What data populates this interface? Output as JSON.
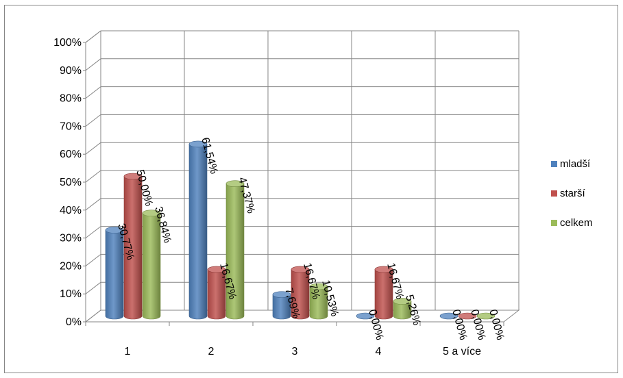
{
  "chart_data": {
    "type": "bar",
    "style": "3d-cylinder",
    "categories": [
      "1",
      "2",
      "3",
      "4",
      "5 a více"
    ],
    "series": [
      {
        "name": "mladší",
        "color": "#4F81BD",
        "values": [
          30.77,
          61.54,
          7.69,
          0.0,
          0.0
        ],
        "labels": [
          "30,77%",
          "61,54%",
          "7,69%",
          "0,00%",
          "0,00%"
        ]
      },
      {
        "name": "starší",
        "color": "#C0504D",
        "values": [
          50.0,
          16.67,
          16.67,
          16.67,
          0.0
        ],
        "labels": [
          "50,00%",
          "16,67%",
          "16,67%",
          "16,67%",
          "0,00%"
        ]
      },
      {
        "name": "celkem",
        "color": "#9BBB59",
        "values": [
          36.84,
          47.37,
          10.53,
          5.26,
          0.0
        ],
        "labels": [
          "36,84%",
          "47,37%",
          "10,53%",
          "5,26%",
          "0,00%"
        ]
      }
    ],
    "y_ticks": [
      "0%",
      "10%",
      "20%",
      "30%",
      "40%",
      "50%",
      "60%",
      "70%",
      "80%",
      "90%",
      "100%"
    ],
    "ylim": [
      0,
      100
    ],
    "grid": true,
    "legend_position": "right",
    "title": "",
    "xlabel": "",
    "ylabel": ""
  }
}
